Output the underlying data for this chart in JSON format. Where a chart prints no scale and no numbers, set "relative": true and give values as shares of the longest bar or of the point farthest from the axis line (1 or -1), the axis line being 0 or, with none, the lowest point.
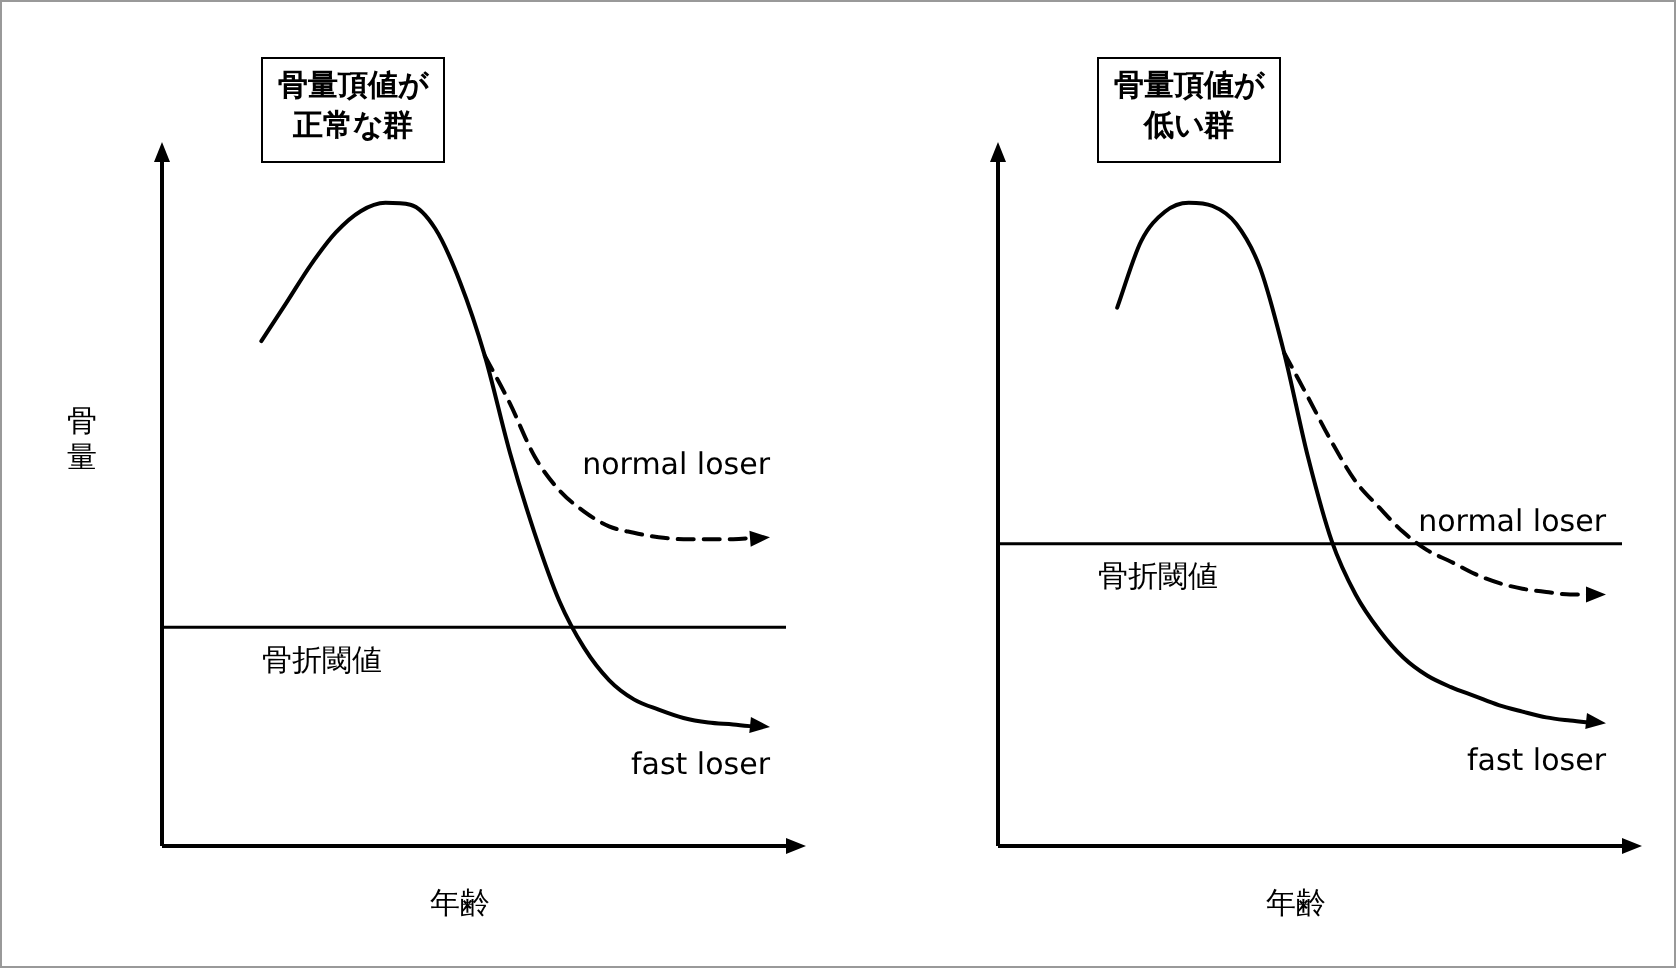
{
  "chart_data": [
    {
      "type": "line",
      "relative": true,
      "legend": false,
      "grid": false,
      "marker": "none",
      "annotations": [
        "骨量頂値が正常な群"
      ],
      "xlabel": "年齢",
      "ylabel": "骨量",
      "categories": [
        null,
        null,
        null,
        null,
        null,
        null,
        null,
        null,
        null,
        null,
        null,
        null,
        null,
        null,
        null,
        null,
        null,
        null,
        null,
        null,
        null,
        null,
        null,
        null,
        null
      ],
      "series": [
        {
          "name": "fast loser",
          "color": "#000000",
          "line_style": "solid",
          "values": [
            null,
            null,
            null,
            null,
            0.785,
            0.844,
            0.904,
            0.954,
            0.987,
            1.0,
            0.997,
            0.96,
            0.877,
            0.762,
            0.613,
            0.487,
            0.381,
            0.308,
            0.258,
            0.228,
            0.212,
            0.199,
            0.192,
            0.189,
            0.185
          ]
        },
        {
          "name": "normal loser",
          "color": "#000000",
          "line_style": "dashed",
          "values": [
            null,
            null,
            null,
            null,
            null,
            null,
            null,
            null,
            null,
            null,
            null,
            null,
            null,
            0.762,
            0.689,
            0.606,
            0.553,
            0.52,
            0.497,
            0.487,
            0.48,
            0.477,
            0.477,
            0.477,
            0.48
          ]
        }
      ],
      "ref_lines": [
        {
          "axis": "y",
          "value": 0.34,
          "label": "骨折閾値",
          "color": "#000000"
        }
      ]
    },
    {
      "type": "line",
      "relative": true,
      "legend": false,
      "grid": false,
      "marker": "none",
      "annotations": [
        "骨量頂値が低い群"
      ],
      "xlabel": "年齢",
      "categories": [
        null,
        null,
        null,
        null,
        null,
        null,
        null,
        null,
        null,
        null,
        null,
        null,
        null,
        null,
        null,
        null,
        null,
        null,
        null,
        null,
        null,
        null,
        null,
        null,
        null,
        null
      ],
      "series": [
        {
          "name": "fast loser",
          "color": "#000000",
          "line_style": "solid",
          "values": [
            null,
            null,
            null,
            null,
            null,
            0.837,
            0.94,
            0.986,
            1.0,
            0.995,
            0.967,
            0.898,
            0.767,
            0.605,
            0.474,
            0.391,
            0.335,
            0.293,
            0.265,
            0.247,
            0.233,
            0.219,
            0.209,
            0.2,
            0.195,
            0.191
          ]
        },
        {
          "name": "normal loser",
          "color": "#000000",
          "line_style": "dashed",
          "values": [
            null,
            null,
            null,
            null,
            null,
            null,
            null,
            null,
            null,
            null,
            null,
            null,
            0.767,
            0.698,
            0.628,
            0.567,
            0.526,
            0.488,
            0.46,
            0.442,
            0.423,
            0.409,
            0.4,
            0.395,
            0.391,
            0.391
          ]
        }
      ],
      "ref_lines": [
        {
          "axis": "y",
          "value": 0.47,
          "label": "骨折閾値",
          "color": "#000000"
        }
      ]
    }
  ]
}
